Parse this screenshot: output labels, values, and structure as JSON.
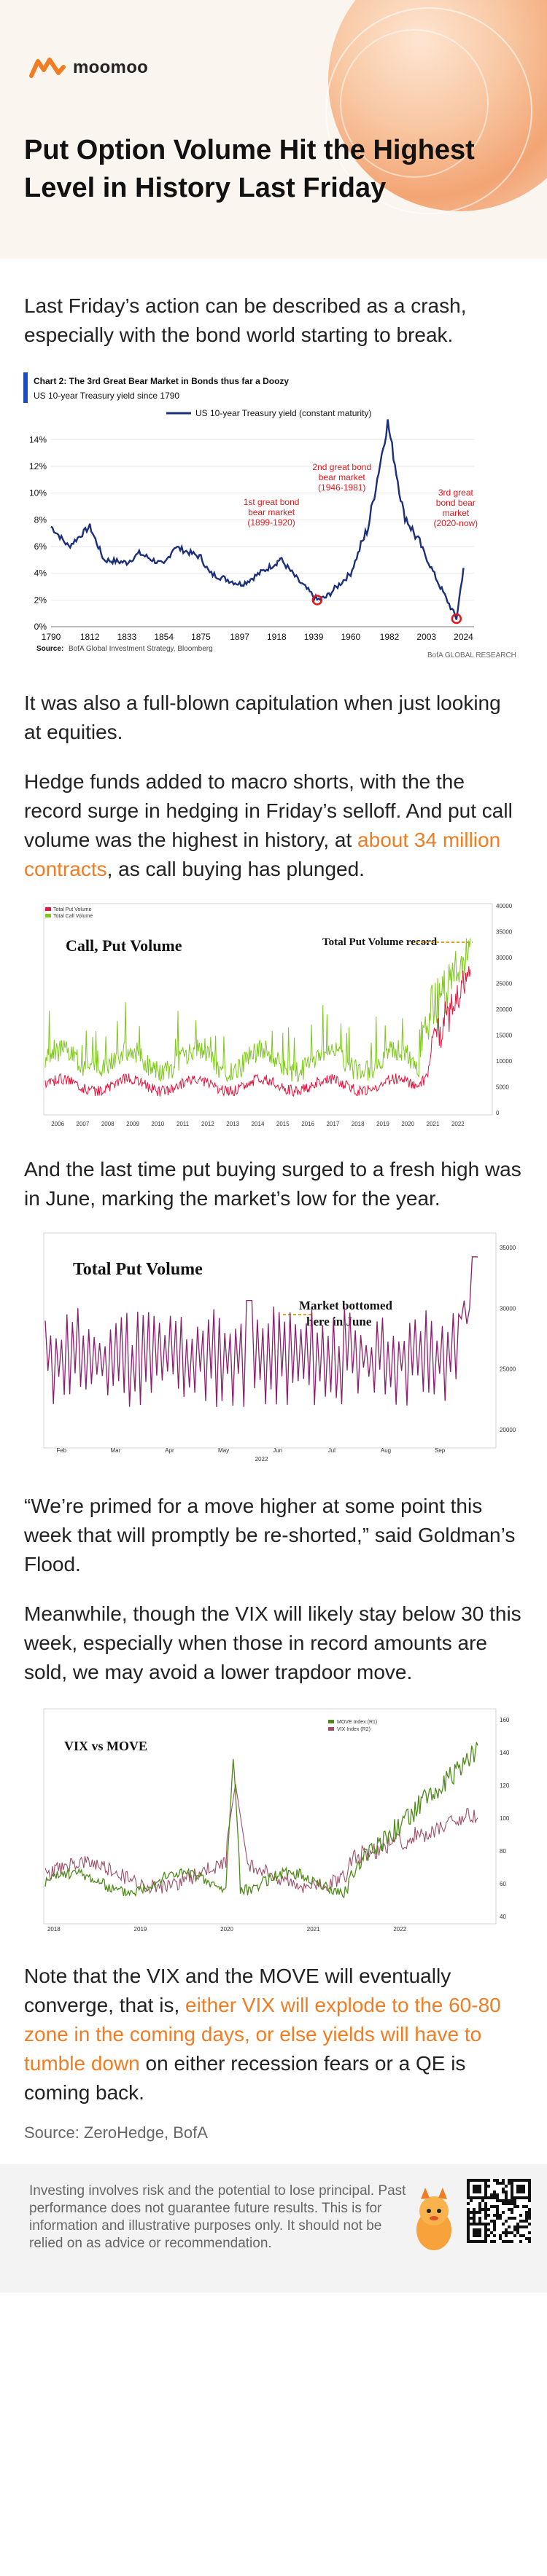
{
  "brand": {
    "name": "moomoo",
    "accent": "#f07d23"
  },
  "article": {
    "title": "Put Option Volume Hit the Highest Level in History Last Friday",
    "p1": "Last Friday’s action can be described as a crash, especially with the bond world starting to break.",
    "p2": "It was also a full-blown capitulation when just looking at equities.",
    "p3_a": "Hedge funds added to macro shorts, with the the record surge in hedging in Friday’s selloff. And put call volume was the highest in history, at ",
    "p3_link": "about 34 million contracts",
    "p3_b": ", as call buying has plunged.",
    "p4": "And the last time put buying surged to a fresh high was in June, marking the market’s low for the year.",
    "p5": "“We’re primed for a move higher at some point this week that will promptly be re-shorted,” said Goldman’s Flood.",
    "p6": "Meanwhile, though the VIX will likely stay below 30 this week, especially when those in record amounts are sold, we may avoid a lower trapdoor move.",
    "p7_a": "Note that the VIX and the MOVE will eventually converge, that is, ",
    "p7_link": "either VIX will explode to the 60-80 zone in the coming days, or else yields will have to tumble down",
    "p7_b": " on either recession fears or a QE is coming back.",
    "source": "Source: ZeroHedge, BofA"
  },
  "footer": {
    "disclaimer": "Investing involves risk and the potential to lose principal. Past performance does not guarantee future results. This is for information and illustrative purposes only. It should not be relied on as advice or recommendation."
  },
  "chart_data": [
    {
      "type": "line",
      "title": "Chart 2: The 3rd Great Bear Market in Bonds thus far a Doozy",
      "subtitle": "US 10-year Treasury yield since 1790",
      "legend": "US 10-year Treasury yield (constant maturity)",
      "source": "Source:",
      "source_detail": "BofA Global Investment Strategy, Bloomberg",
      "credit": "BofA GLOBAL RESEARCH",
      "x": [
        1790,
        1800,
        1812,
        1820,
        1833,
        1840,
        1854,
        1860,
        1875,
        1880,
        1897,
        1900,
        1918,
        1920,
        1930,
        1941,
        1946,
        1960,
        1970,
        1981,
        1990,
        2000,
        2010,
        2020,
        2024
      ],
      "y": [
        7.5,
        6.0,
        7.5,
        5.0,
        4.8,
        5.5,
        4.6,
        6.0,
        5.2,
        4.0,
        3.2,
        3.3,
        4.8,
        5.1,
        3.5,
        2.0,
        2.2,
        4.0,
        7.5,
        15.3,
        8.5,
        6.0,
        3.2,
        0.6,
        4.4
      ],
      "xticks": [
        "1790",
        "1812",
        "1833",
        "1854",
        "1875",
        "1897",
        "1918",
        "1939",
        "1960",
        "1982",
        "2003",
        "2024"
      ],
      "yticks": [
        "0%",
        "2%",
        "4%",
        "6%",
        "8%",
        "10%",
        "12%",
        "14%"
      ],
      "ylim": [
        0,
        15
      ],
      "annotations": [
        {
          "text": [
            "1st great bond",
            "bear market",
            "(1899-1920)"
          ]
        },
        {
          "text": [
            "2nd great bond",
            "bear market",
            "(1946-1981)"
          ]
        },
        {
          "text": [
            "3rd great",
            "bond bear",
            "market",
            "(2020-now)"
          ]
        }
      ],
      "series_color": "#1b2f7a",
      "annotation_color": "#e3161b"
    },
    {
      "type": "line",
      "title": "Call, Put Volume",
      "annotation": "Total Put Volume record",
      "legend": [
        "Total Put Volume",
        "Total Call Volume"
      ],
      "xticks": [
        "2006",
        "2007",
        "2008",
        "2009",
        "2010",
        "2011",
        "2012",
        "2013",
        "2014",
        "2015",
        "2016",
        "2017",
        "2018",
        "2019",
        "2020",
        "2021",
        "2022"
      ],
      "yticks": [
        "40000",
        "35000",
        "30000",
        "25000",
        "20000",
        "15000",
        "10000",
        "5000",
        "0"
      ],
      "colors": {
        "put": "#e2163f",
        "call": "#7ec81b"
      }
    },
    {
      "type": "line",
      "title": "Total Put Volume",
      "annotation": [
        "Market bottomed",
        "here in June"
      ],
      "xticks": [
        "Feb",
        "Mar",
        "Apr",
        "May",
        "Jun",
        "Jul",
        "Aug",
        "Sep"
      ],
      "xyear": "2022",
      "yticks": [
        "35000",
        "30000",
        "25000",
        "20000"
      ],
      "color": "#8a1f6b"
    },
    {
      "type": "line",
      "title": "VIX vs MOVE",
      "legend": [
        "MOVE Index (R1)",
        "VIX Index (R2)"
      ],
      "xticks": [
        "2018",
        "2019",
        "2020",
        "2021",
        "2022"
      ],
      "yticks": [
        "160",
        "140",
        "120",
        "100",
        "80",
        "60",
        "40"
      ],
      "colors": {
        "move": "#4f8a1a",
        "vix": "#9e4f6b"
      }
    }
  ]
}
